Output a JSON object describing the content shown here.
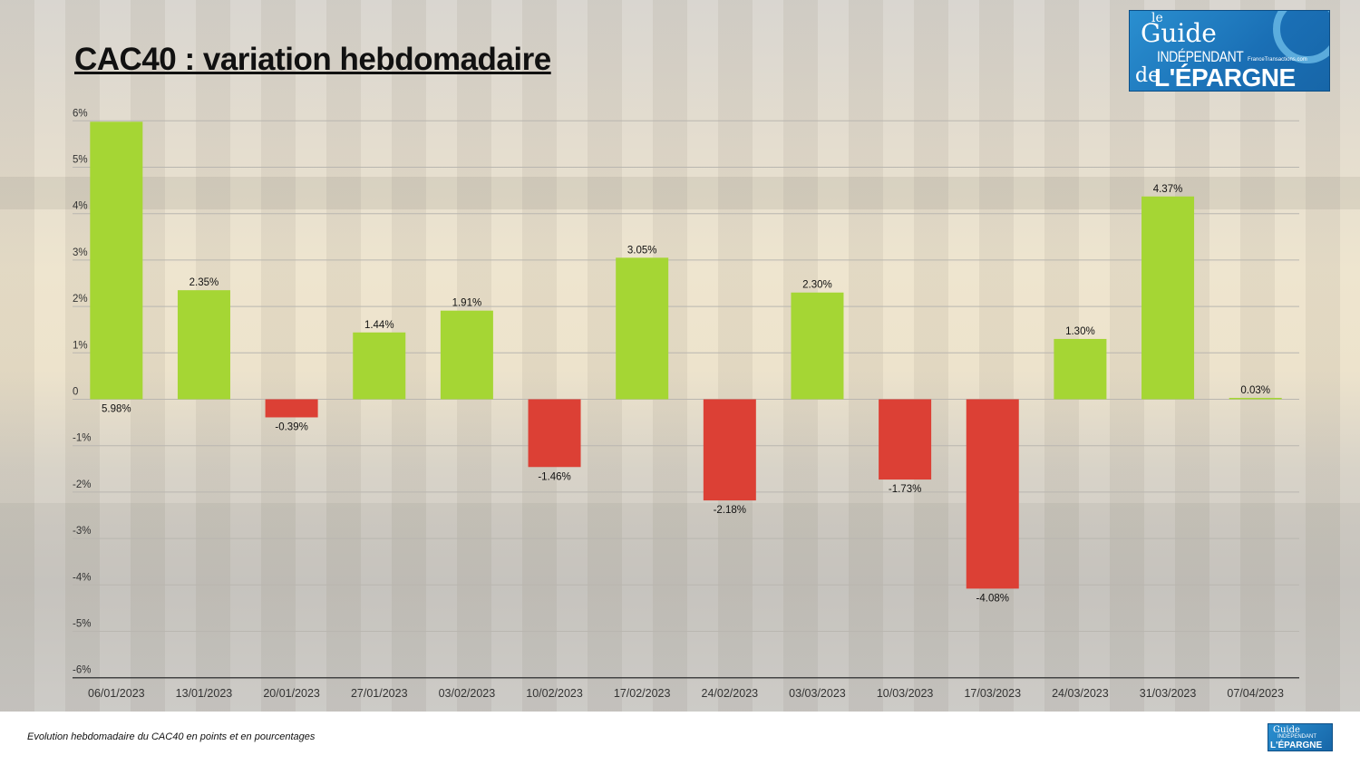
{
  "page": {
    "title": "CAC40 : variation hebdomadaire",
    "caption": "Evolution hebdomadaire du CAC40 en points et en pourcentages",
    "logo": {
      "line1": "le",
      "line2": "Guide",
      "line3": "INDÉPENDANT",
      "line3b": "FranceTransactions.com",
      "line4": "de",
      "line5": "L'ÉPARGNE"
    },
    "colors": {
      "positive": "#a5d634",
      "negative": "#dc4035",
      "grid": "#b9b6b0",
      "axis": "#444444"
    }
  },
  "chart_data": {
    "type": "bar",
    "title": "CAC40 : variation hebdomadaire",
    "categories": [
      "06/01/2023",
      "13/01/2023",
      "20/01/2023",
      "27/01/2023",
      "03/02/2023",
      "10/02/2023",
      "17/02/2023",
      "24/02/2023",
      "03/03/2023",
      "10/03/2023",
      "17/03/2023",
      "24/03/2023",
      "31/03/2023",
      "07/04/2023"
    ],
    "values": [
      5.98,
      2.35,
      -0.39,
      1.44,
      1.91,
      -1.46,
      3.05,
      -2.18,
      2.3,
      -1.73,
      -4.08,
      1.3,
      4.37,
      0.03
    ],
    "data_labels": [
      "5.98%",
      "2.35%",
      "-0.39%",
      "1.44%",
      "1.91%",
      "-1.46%",
      "3.05%",
      "-2.18%",
      "2.30%",
      "-1.73%",
      "-4.08%",
      "1.30%",
      "4.37%",
      "0.03%"
    ],
    "y_ticks": [
      6,
      5,
      4,
      3,
      2,
      1,
      0,
      -1,
      -2,
      -3,
      -4,
      -5,
      -6
    ],
    "y_tick_labels": [
      "6%",
      "5%",
      "4%",
      "3%",
      "2%",
      "1%",
      "0",
      "-1%",
      "-2%",
      "-3%",
      "-4%",
      "-5%",
      "-6%"
    ],
    "ylim": [
      -6,
      6
    ],
    "xlabel": "",
    "ylabel": "",
    "grid": true,
    "legend": "none"
  }
}
